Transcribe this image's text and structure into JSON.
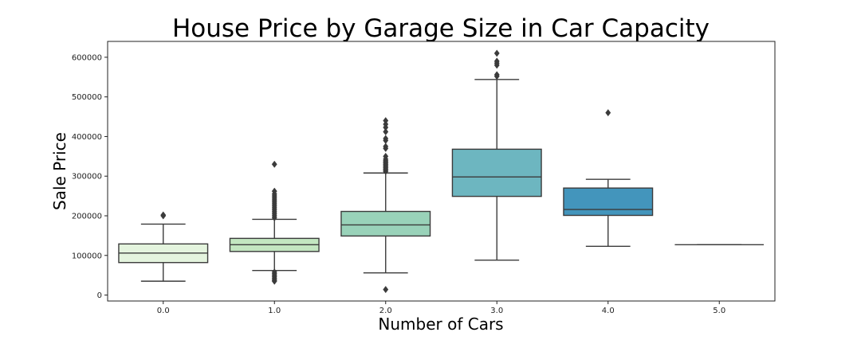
{
  "chart_data": {
    "type": "box",
    "title": "House Price by Garage Size in Car Capacity",
    "xlabel": "Number of Cars",
    "ylabel": "Sale Price",
    "categories": [
      "0.0",
      "1.0",
      "2.0",
      "3.0",
      "4.0",
      "5.0"
    ],
    "yticks": [
      0,
      100000,
      200000,
      300000,
      400000,
      500000,
      600000
    ],
    "ytick_labels": [
      "0",
      "100000",
      "200000",
      "300000",
      "400000",
      "500000",
      "600000"
    ],
    "ylim": [
      -15000,
      640000
    ],
    "grid": false,
    "box_colors": [
      "#e4f4de",
      "#c3e6c1",
      "#99d2b9",
      "#6db6c0",
      "#4395bc",
      "#2a6fa9"
    ],
    "line_color": "#3b3b3b",
    "boxes": [
      {
        "category": "0.0",
        "whisker_low": 35000,
        "q1": 82000,
        "median": 106000,
        "q3": 129000,
        "whisker_high": 179000,
        "outliers": [
          200000,
          202000
        ]
      },
      {
        "category": "1.0",
        "whisker_low": 62000,
        "q1": 110000,
        "median": 127000,
        "q3": 143000,
        "whisker_high": 191000,
        "outliers": [
          195000,
          200000,
          205000,
          210000,
          215000,
          220000,
          225000,
          230000,
          235000,
          240000,
          245000,
          250000,
          255000,
          262000,
          330000,
          58000,
          54000,
          50000,
          46000,
          42000,
          38000,
          35000
        ]
      },
      {
        "category": "2.0",
        "whisker_low": 56000,
        "q1": 149000,
        "median": 177000,
        "q3": 211000,
        "whisker_high": 308000,
        "outliers": [
          312000,
          315000,
          318000,
          321000,
          324000,
          327000,
          330000,
          333000,
          336000,
          339000,
          343000,
          350000,
          370000,
          375000,
          390000,
          395000,
          412000,
          423000,
          431000,
          440000,
          14000
        ]
      },
      {
        "category": "3.0",
        "whisker_low": 88000,
        "q1": 249000,
        "median": 298000,
        "q3": 368000,
        "whisker_high": 544000,
        "outliers": [
          552000,
          556000,
          580000,
          585000,
          590000,
          610000
        ]
      },
      {
        "category": "4.0",
        "whisker_low": 123000,
        "q1": 201000,
        "median": 216000,
        "q3": 270000,
        "whisker_high": 292000,
        "outliers": [
          460000
        ]
      },
      {
        "category": "5.0",
        "whisker_low": 127000,
        "q1": 127000,
        "median": 127000,
        "q3": 127000,
        "whisker_high": 127000,
        "outliers": []
      }
    ]
  }
}
